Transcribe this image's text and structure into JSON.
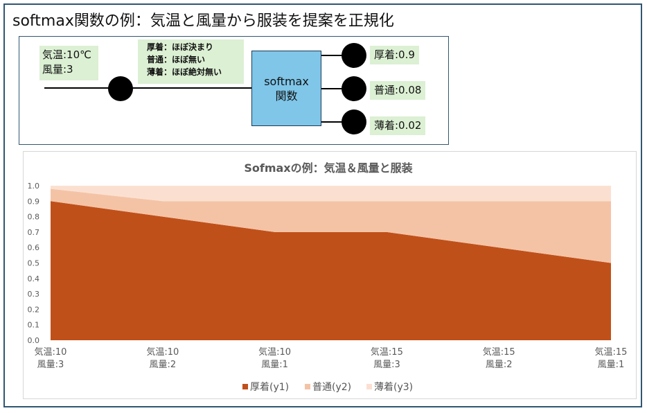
{
  "page_title": "softmax関数の例：気温と風量から服装を提案を正規化",
  "diagram": {
    "input_lines": [
      "気温:10℃",
      "風量:3"
    ],
    "class_lines": [
      "厚着：ほぼ決まり",
      "普通：ほぼ無い",
      "薄着：ほぼ絶対無い"
    ],
    "softmax_lines": [
      "softmax",
      "関数"
    ],
    "outputs": [
      "厚着:0.9",
      "普通:0.08",
      "薄着:0.02"
    ],
    "colors": {
      "label_bg": "#dcf0d4",
      "softmax_bg": "#7fc6e9",
      "node": "#000000"
    }
  },
  "chart_data": {
    "type": "area",
    "stacked": true,
    "title": "Sofmaxの例：気温＆風量と服装",
    "categories": [
      [
        "気温:10",
        "風量:3"
      ],
      [
        "気温:10",
        "風量:2"
      ],
      [
        "気温:10",
        "風量:1"
      ],
      [
        "気温:15",
        "風量:3"
      ],
      [
        "気温:15",
        "風量:2"
      ],
      [
        "気温:15",
        "風量:1"
      ]
    ],
    "series": [
      {
        "name": "厚着(y1)",
        "values": [
          0.9,
          0.8,
          0.7,
          0.7,
          0.6,
          0.5
        ],
        "color": "#c05019"
      },
      {
        "name": "普通(y2)",
        "values": [
          0.08,
          0.1,
          0.2,
          0.2,
          0.3,
          0.4
        ],
        "color": "#f4c3a6"
      },
      {
        "name": "薄着(y3)",
        "values": [
          0.02,
          0.1,
          0.1,
          0.1,
          0.1,
          0.1
        ],
        "color": "#fbe0d1"
      }
    ],
    "ylim": [
      0,
      1
    ],
    "yticks": [
      "0.0",
      "0.1",
      "0.2",
      "0.3",
      "0.4",
      "0.5",
      "0.6",
      "0.7",
      "0.8",
      "0.9",
      "1.0"
    ],
    "grid": false,
    "legend": "bottom"
  }
}
